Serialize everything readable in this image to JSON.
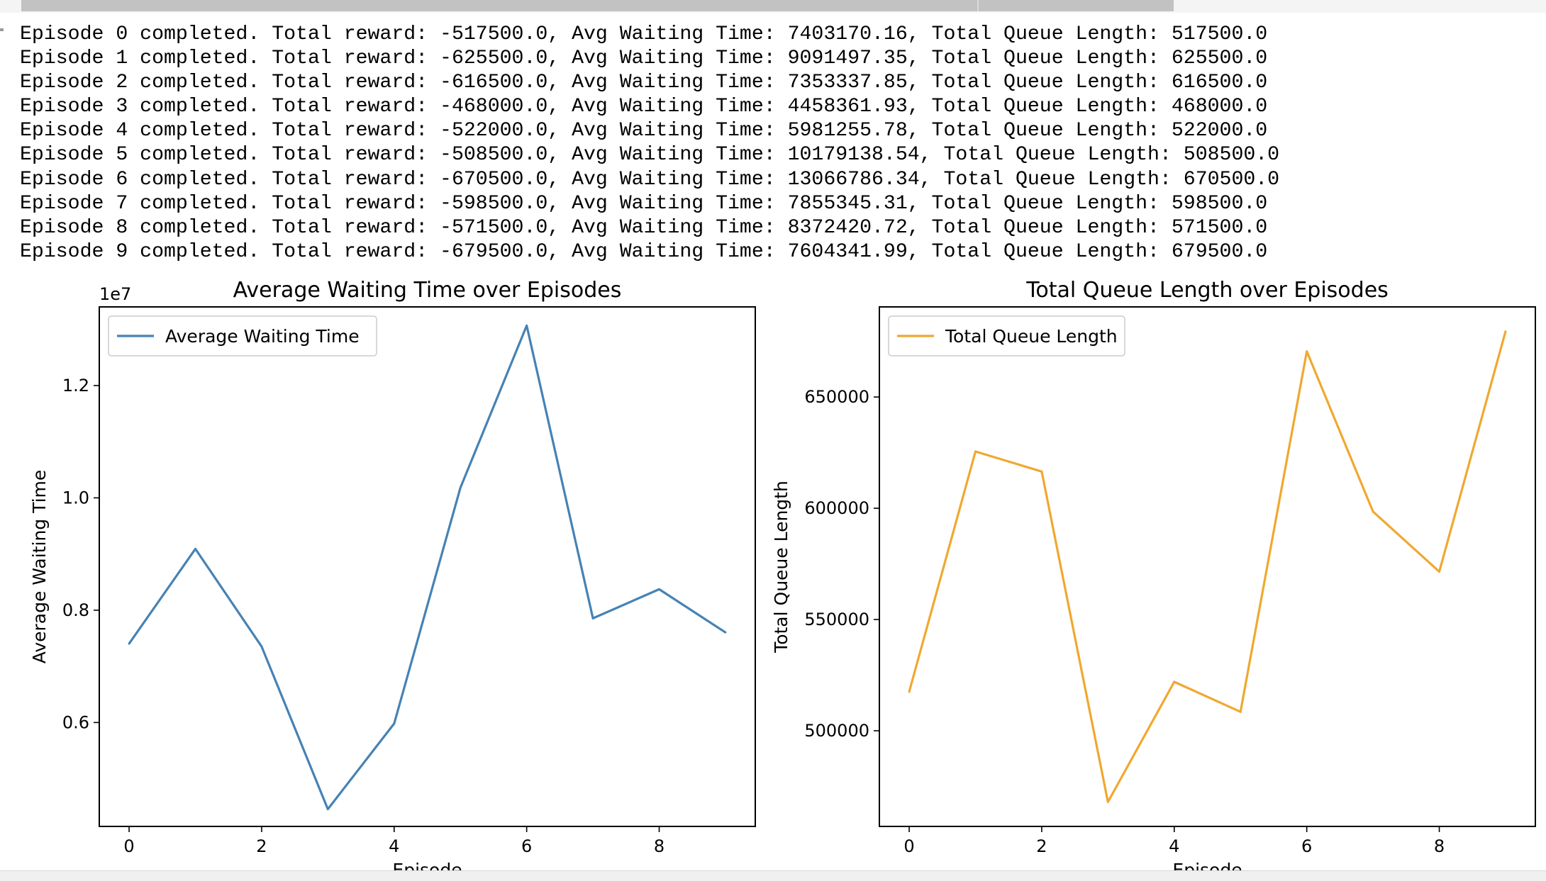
{
  "log": {
    "lines": [
      "Episode 0 completed. Total reward: -517500.0, Avg Waiting Time: 7403170.16, Total Queue Length: 517500.0",
      "Episode 1 completed. Total reward: -625500.0, Avg Waiting Time: 9091497.35, Total Queue Length: 625500.0",
      "Episode 2 completed. Total reward: -616500.0, Avg Waiting Time: 7353337.85, Total Queue Length: 616500.0",
      "Episode 3 completed. Total reward: -468000.0, Avg Waiting Time: 4458361.93, Total Queue Length: 468000.0",
      "Episode 4 completed. Total reward: -522000.0, Avg Waiting Time: 5981255.78, Total Queue Length: 522000.0",
      "Episode 5 completed. Total reward: -508500.0, Avg Waiting Time: 10179138.54, Total Queue Length: 508500.0",
      "Episode 6 completed. Total reward: -670500.0, Avg Waiting Time: 13066786.34, Total Queue Length: 670500.0",
      "Episode 7 completed. Total reward: -598500.0, Avg Waiting Time: 7855345.31, Total Queue Length: 598500.0",
      "Episode 8 completed. Total reward: -571500.0, Avg Waiting Time: 8372420.72, Total Queue Length: 571500.0",
      "Episode 9 completed. Total reward: -679500.0, Avg Waiting Time: 7604341.99, Total Queue Length: 679500.0"
    ]
  },
  "chart_data": [
    {
      "type": "line",
      "title": "Average Waiting Time over Episodes",
      "xlabel": "Episode",
      "ylabel": "Average Waiting Time",
      "offset_text": "1e7",
      "x": [
        0,
        1,
        2,
        3,
        4,
        5,
        6,
        7,
        8,
        9
      ],
      "series": [
        {
          "name": "Average Waiting Time",
          "color": "#4682b4",
          "values": [
            7403170.16,
            9091497.35,
            7353337.85,
            4458361.93,
            5981255.78,
            10179138.54,
            13066786.34,
            7855345.31,
            8372420.72,
            7604341.99
          ]
        }
      ],
      "xlim": [
        -0.45,
        9.45
      ],
      "ylim": [
        4150000,
        13400000
      ],
      "xticks": [
        0,
        2,
        4,
        6,
        8
      ],
      "xtick_labels": [
        "0",
        "2",
        "4",
        "6",
        "8"
      ],
      "yticks": [
        6000000,
        8000000,
        10000000,
        12000000
      ],
      "ytick_labels": [
        "0.6",
        "0.8",
        "1.0",
        "1.2"
      ],
      "legend": "top-left",
      "grid": false
    },
    {
      "type": "line",
      "title": "Total Queue Length over Episodes",
      "xlabel": "Episode",
      "ylabel": "Total Queue Length",
      "offset_text": "",
      "x": [
        0,
        1,
        2,
        3,
        4,
        5,
        6,
        7,
        8,
        9
      ],
      "series": [
        {
          "name": "Total Queue Length",
          "color": "#f0a830",
          "values": [
            517500,
            625500,
            616500,
            468000,
            522000,
            508500,
            670500,
            598500,
            571500,
            679500
          ]
        }
      ],
      "xlim": [
        -0.45,
        9.45
      ],
      "ylim": [
        457000,
        690500
      ],
      "xticks": [
        0,
        2,
        4,
        6,
        8
      ],
      "xtick_labels": [
        "0",
        "2",
        "4",
        "6",
        "8"
      ],
      "yticks": [
        500000,
        550000,
        600000,
        650000
      ],
      "ytick_labels": [
        "500000",
        "550000",
        "600000",
        "650000"
      ],
      "legend": "top-left",
      "grid": false
    }
  ]
}
